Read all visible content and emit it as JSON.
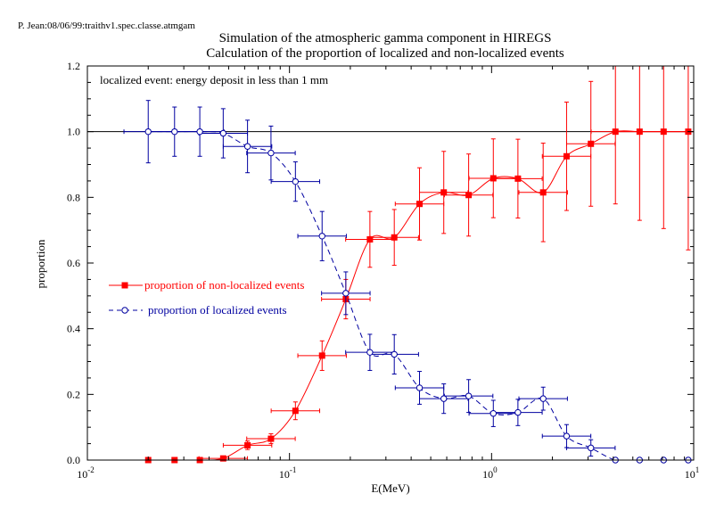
{
  "header_tag": "P. Jean:08/06/99:traithv1.spec.classe.atmgam",
  "chart_data": {
    "type": "scatter",
    "title": "Simulation of the atmospheric gamma component in HIREGS",
    "subtitle": "Calculation of the proportion of localized and non-localized events",
    "xlabel": "E(MeV)",
    "ylabel": "proportion",
    "xscale": "log",
    "xlim": [
      0.01,
      10
    ],
    "ylim": [
      0,
      1.2
    ],
    "x_ticks": [
      {
        "value": 0.01,
        "base": "10",
        "exp": "-2"
      },
      {
        "value": 0.1,
        "base": "10",
        "exp": "-1"
      },
      {
        "value": 1,
        "base": "10",
        "exp": "0"
      },
      {
        "value": 10,
        "base": "10",
        "exp": "1"
      }
    ],
    "y_ticks": [
      "0.0",
      "0.2",
      "0.4",
      "0.6",
      "0.8",
      "1.0",
      "1.2"
    ],
    "reference_line": 1.0,
    "annotation": "localized event: energy deposit in less than 1 mm",
    "legend_position": "middle-left",
    "series": [
      {
        "name": "proportion of non-localized events",
        "color": "#ff0000",
        "marker": "filled-square",
        "line": "solid-smooth",
        "points": [
          {
            "x": 0.02,
            "y": 0.0,
            "xerr": 0.0,
            "yerr": 0.0
          },
          {
            "x": 0.027,
            "y": 0.0,
            "xerr": 0.0,
            "yerr": 0.0
          },
          {
            "x": 0.036,
            "y": 0.0,
            "xerr": 0.0,
            "yerr": 0.0
          },
          {
            "x": 0.047,
            "y": 0.005,
            "xerr": 0.12,
            "yerr": 0.005
          },
          {
            "x": 0.062,
            "y": 0.045,
            "xerr": 0.12,
            "yerr": 0.013
          },
          {
            "x": 0.081,
            "y": 0.065,
            "xerr": 0.12,
            "yerr": 0.015
          },
          {
            "x": 0.107,
            "y": 0.15,
            "xerr": 0.12,
            "yerr": 0.027
          },
          {
            "x": 0.145,
            "y": 0.318,
            "xerr": 0.12,
            "yerr": 0.045
          },
          {
            "x": 0.19,
            "y": 0.49,
            "xerr": 0.12,
            "yerr": 0.06
          },
          {
            "x": 0.25,
            "y": 0.672,
            "xerr": 0.12,
            "yerr": 0.085
          },
          {
            "x": 0.33,
            "y": 0.678,
            "xerr": 0.12,
            "yerr": 0.085
          },
          {
            "x": 0.44,
            "y": 0.78,
            "xerr": 0.12,
            "yerr": 0.11
          },
          {
            "x": 0.58,
            "y": 0.815,
            "xerr": 0.12,
            "yerr": 0.125
          },
          {
            "x": 0.77,
            "y": 0.807,
            "xerr": 0.12,
            "yerr": 0.125
          },
          {
            "x": 1.02,
            "y": 0.858,
            "xerr": 0.12,
            "yerr": 0.12
          },
          {
            "x": 1.35,
            "y": 0.857,
            "xerr": 0.12,
            "yerr": 0.12
          },
          {
            "x": 1.8,
            "y": 0.815,
            "xerr": 0.12,
            "yerr": 0.15
          },
          {
            "x": 2.35,
            "y": 0.925,
            "xerr": 0.12,
            "yerr": 0.165
          },
          {
            "x": 3.1,
            "y": 0.963,
            "xerr": 0.12,
            "yerr": 0.19
          },
          {
            "x": 4.1,
            "y": 1.0,
            "xerr": 0.12,
            "yerr": 0.22
          },
          {
            "x": 5.4,
            "y": 1.0,
            "xerr": 0.12,
            "yerr": 0.27
          },
          {
            "x": 7.1,
            "y": 1.0,
            "xerr": 0.12,
            "yerr": 0.295
          },
          {
            "x": 9.4,
            "y": 1.0,
            "xerr": 0.12,
            "yerr": 0.36
          }
        ]
      },
      {
        "name": "proportion of localized events",
        "color": "#0000a0",
        "marker": "open-circle",
        "line": "dashed-smooth",
        "points": [
          {
            "x": 0.02,
            "y": 1.0,
            "xerr": 0.12,
            "yerr": 0.095
          },
          {
            "x": 0.027,
            "y": 1.0,
            "xerr": 0.12,
            "yerr": 0.075
          },
          {
            "x": 0.036,
            "y": 1.0,
            "xerr": 0.12,
            "yerr": 0.075
          },
          {
            "x": 0.047,
            "y": 0.995,
            "xerr": 0.12,
            "yerr": 0.075
          },
          {
            "x": 0.062,
            "y": 0.955,
            "xerr": 0.12,
            "yerr": 0.08
          },
          {
            "x": 0.081,
            "y": 0.935,
            "xerr": 0.12,
            "yerr": 0.082
          },
          {
            "x": 0.107,
            "y": 0.848,
            "xerr": 0.12,
            "yerr": 0.06
          },
          {
            "x": 0.145,
            "y": 0.682,
            "xerr": 0.12,
            "yerr": 0.075
          },
          {
            "x": 0.19,
            "y": 0.508,
            "xerr": 0.12,
            "yerr": 0.065
          },
          {
            "x": 0.25,
            "y": 0.328,
            "xerr": 0.12,
            "yerr": 0.055
          },
          {
            "x": 0.33,
            "y": 0.322,
            "xerr": 0.12,
            "yerr": 0.06
          },
          {
            "x": 0.44,
            "y": 0.22,
            "xerr": 0.12,
            "yerr": 0.05
          },
          {
            "x": 0.58,
            "y": 0.187,
            "xerr": 0.12,
            "yerr": 0.045
          },
          {
            "x": 0.77,
            "y": 0.195,
            "xerr": 0.12,
            "yerr": 0.05
          },
          {
            "x": 1.02,
            "y": 0.142,
            "xerr": 0.12,
            "yerr": 0.04
          },
          {
            "x": 1.35,
            "y": 0.145,
            "xerr": 0.12,
            "yerr": 0.04
          },
          {
            "x": 1.8,
            "y": 0.187,
            "xerr": 0.12,
            "yerr": 0.035
          },
          {
            "x": 2.35,
            "y": 0.073,
            "xerr": 0.12,
            "yerr": 0.035
          },
          {
            "x": 3.1,
            "y": 0.037,
            "xerr": 0.12,
            "yerr": 0.025
          },
          {
            "x": 4.1,
            "y": 0.0,
            "xerr": 0.0,
            "yerr": 0.0
          },
          {
            "x": 5.4,
            "y": 0.0,
            "xerr": 0.0,
            "yerr": 0.0
          },
          {
            "x": 7.1,
            "y": 0.0,
            "xerr": 0.0,
            "yerr": 0.0
          },
          {
            "x": 9.4,
            "y": 0.0,
            "xerr": 0.0,
            "yerr": 0.0
          }
        ]
      }
    ]
  }
}
